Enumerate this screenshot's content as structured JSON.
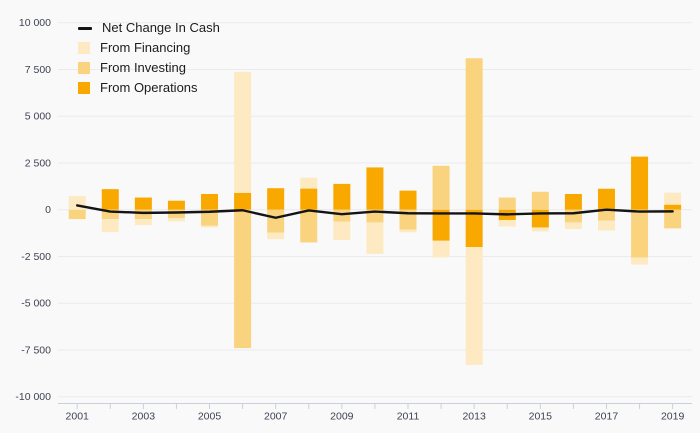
{
  "chart_data": {
    "type": "bar",
    "subtype": "stacked-bars-with-line",
    "title": "",
    "categories": [
      "2001",
      "2002",
      "2003",
      "2004",
      "2005",
      "2006",
      "2007",
      "2008",
      "2009",
      "2010",
      "2011",
      "2012",
      "2013",
      "2014",
      "2015",
      "2016",
      "2017",
      "2018",
      "2019"
    ],
    "series": [
      {
        "key": "operations",
        "name": "From Operations",
        "color": "#f9a800",
        "values": [
          0,
          1100,
          650,
          480,
          840,
          900,
          1150,
          1130,
          1380,
          2260,
          1020,
          -1660,
          -2000,
          -550,
          -950,
          840,
          1120,
          2840,
          270
        ]
      },
      {
        "key": "investing",
        "name": "From Investing",
        "color": "#fad37e",
        "values": [
          -500,
          -500,
          -500,
          -450,
          -860,
          -7400,
          -1230,
          -1750,
          -640,
          -680,
          -1070,
          2350,
          8100,
          650,
          960,
          -680,
          -590,
          -2560,
          -1000
        ]
      },
      {
        "key": "financing",
        "name": "From Financing",
        "color": "#fdeac2",
        "values": [
          730,
          -700,
          -320,
          -180,
          -90,
          6470,
          -350,
          580,
          -980,
          -1680,
          -140,
          -890,
          -6300,
          -350,
          -210,
          -350,
          -530,
          -380,
          640
        ]
      }
    ],
    "line_series": {
      "key": "net-change-in-cash",
      "name": "Net Change In Cash",
      "color": "#141414",
      "values": [
        230,
        -100,
        -170,
        -150,
        -110,
        -30,
        -430,
        -40,
        -240,
        -100,
        -190,
        -200,
        -200,
        -250,
        -200,
        -190,
        0,
        -100,
        -90
      ]
    },
    "ylim": [
      -10000,
      10000
    ],
    "y_tick_values": [
      10000,
      7500,
      5000,
      2500,
      0,
      -2500,
      -5000,
      -7500,
      -10000
    ],
    "y_tick_labels": [
      "10 000",
      "7 500",
      "5 000",
      "2 500",
      "0",
      "-2 500",
      "-5 000",
      "-7 500",
      "-10 000"
    ],
    "x_tick_labels": [
      "2001",
      "2003",
      "2005",
      "2007",
      "2009",
      "2011",
      "2013",
      "2015",
      "2017",
      "2019"
    ],
    "grid": true,
    "legend_position": "top-left",
    "colors": {
      "background": "#f9f9fa",
      "gridline": "#ebebee",
      "axis_line": "#c9cfde",
      "tick_label": "#3f4254",
      "net_line": "#141414"
    }
  },
  "legend": {
    "items": [
      {
        "label": "Net Change In Cash",
        "swatch": "line"
      },
      {
        "label": "From Financing",
        "swatch": "box"
      },
      {
        "label": "From Investing",
        "swatch": "box"
      },
      {
        "label": "From Operations",
        "swatch": "box"
      }
    ]
  }
}
